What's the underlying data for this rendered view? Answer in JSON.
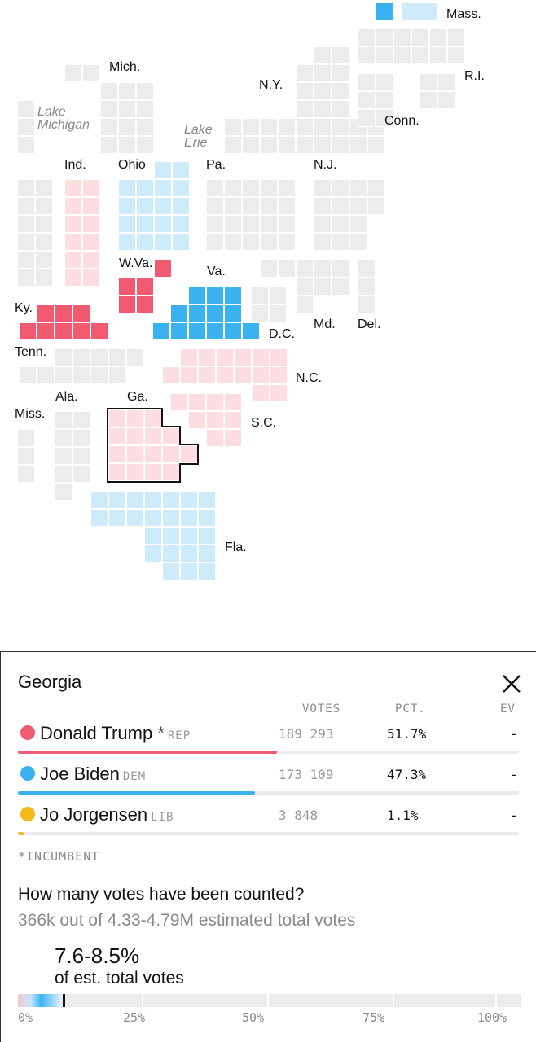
{
  "map": {
    "colors": {
      "rep_light": "#fbdde2",
      "rep_strong": "#f25a71",
      "dem_light": "#cdebfb",
      "dem_strong": "#3ab2f0",
      "none": "#ececec"
    },
    "legend": {
      "label": "Mass."
    },
    "state_labels": {
      "mass": "Mass.",
      "mich": "Mich.",
      "ny": "N.Y.",
      "ri": "R.I.",
      "conn": "Conn.",
      "ind": "Ind.",
      "ohio": "Ohio",
      "pa": "Pa.",
      "nj": "N.J.",
      "wva": "W.Va.",
      "va": "Va.",
      "ky": "Ky.",
      "dc": "D.C.",
      "md": "Md.",
      "del": "Del.",
      "tenn": "Tenn.",
      "nc": "N.C.",
      "ala": "Ala.",
      "ga": "Ga.",
      "miss": "Miss.",
      "sc": "S.C.",
      "fla": "Fla."
    },
    "water_labels": {
      "lake_michigan": "Lake Michigan",
      "lake_erie": "Lake Erie"
    }
  },
  "panel": {
    "state_name": "Georgia",
    "close_icon": "close-x-icon",
    "columns": {
      "votes": "VOTES",
      "pct": "PCT.",
      "ev": "EV"
    },
    "candidates": [
      {
        "name": "Donald Trump",
        "incumbent_mark": "*",
        "party": "REP",
        "votes": "189 293",
        "pct": "51.7%",
        "ev": "-",
        "share": 51.7,
        "color": "#f25a71"
      },
      {
        "name": "Joe Biden",
        "incumbent_mark": "",
        "party": "DEM",
        "votes": "173 109",
        "pct": "47.3%",
        "ev": "-",
        "share": 47.3,
        "color": "#3ab2f0"
      },
      {
        "name": "Jo Jorgensen",
        "incumbent_mark": "",
        "party": "LIB",
        "votes": "3 848",
        "pct": "1.1%",
        "ev": "-",
        "share": 1.1,
        "color": "#f5b91b"
      }
    ],
    "incumbent_note": "*INCUMBENT",
    "counted": {
      "question": "How many votes have been counted?",
      "summary": "366k out of 4.33-4.79M estimated total votes",
      "pct_range": "7.6-8.5%",
      "pct_sub": "of est. total votes",
      "progress_low": 7.6,
      "progress_high": 8.5,
      "ticks": [
        "0%",
        "25%",
        "50%",
        "75%",
        "100%"
      ]
    }
  }
}
